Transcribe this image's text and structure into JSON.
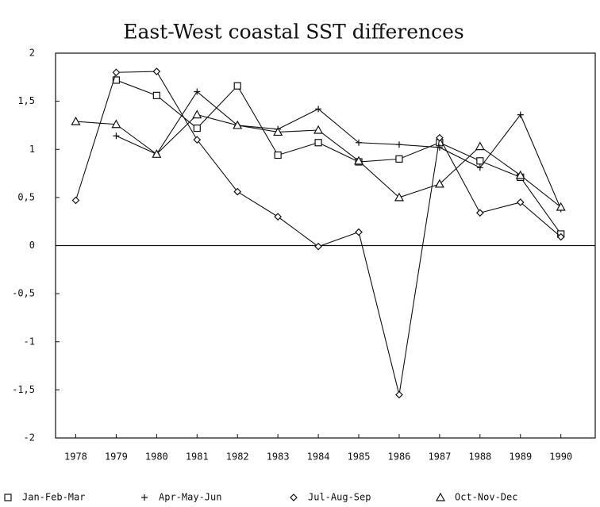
{
  "chart_data": {
    "type": "line",
    "title": "East-West coastal SST differences",
    "x": [
      1978,
      1979,
      1980,
      1981,
      1982,
      1983,
      1984,
      1985,
      1986,
      1987,
      1988,
      1989,
      1990
    ],
    "series": [
      {
        "name": "Jan-Feb-Mar",
        "color": "#111111",
        "marker": "square",
        "values": [
          null,
          1.72,
          1.56,
          1.22,
          1.66,
          0.94,
          1.07,
          0.87,
          0.9,
          1.07,
          0.88,
          0.71,
          0.12
        ]
      },
      {
        "name": "Apr-May-Jun",
        "color": "#111111",
        "marker": "plus",
        "values": [
          null,
          1.14,
          0.95,
          1.6,
          1.25,
          1.21,
          1.42,
          1.07,
          1.05,
          1.02,
          0.81,
          1.36,
          0.38
        ]
      },
      {
        "name": "Jul-Aug-Sep",
        "color": "#111111",
        "marker": "diamond",
        "values": [
          0.47,
          1.8,
          1.81,
          1.1,
          0.56,
          0.3,
          -0.01,
          0.14,
          -1.55,
          1.12,
          0.34,
          0.45,
          0.09
        ]
      },
      {
        "name": "Oct-Nov-Dec",
        "color": "#111111",
        "marker": "triangle",
        "values": [
          1.29,
          1.26,
          0.95,
          1.36,
          1.25,
          1.18,
          1.2,
          0.88,
          0.5,
          0.64,
          1.03,
          0.73,
          0.4
        ]
      }
    ],
    "xlim": [
      1977.5,
      1990.85
    ],
    "xticks": [
      1978,
      1979,
      1980,
      1981,
      1982,
      1983,
      1984,
      1985,
      1986,
      1987,
      1988,
      1989,
      1990
    ],
    "ylim": [
      -2,
      2
    ],
    "yticks": [
      -2,
      {
        "value": -1.5,
        "label": "-1,5"
      },
      -1,
      {
        "value": -0.5,
        "label": "-0,5"
      },
      0,
      {
        "value": 0.5,
        "label": "0,5"
      },
      1,
      {
        "value": 1.5,
        "label": "1,5"
      },
      2
    ],
    "grid": false,
    "legend": "bottom"
  }
}
